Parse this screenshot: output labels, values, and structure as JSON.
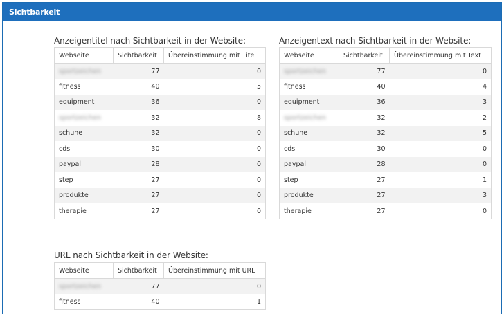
{
  "panel": {
    "title": "Sichtbarkeit"
  },
  "tables": {
    "title_table": {
      "heading": "Anzeigentitel nach Sichtbarkeit in der Website:",
      "columns": [
        "Webseite",
        "Sichtbarkeit",
        "Übereinstimmung mit Titel"
      ],
      "rows": [
        {
          "site": "sportzeichen",
          "blurred": true,
          "vis": "77",
          "match": "0"
        },
        {
          "site": "fitness",
          "blurred": false,
          "vis": "40",
          "match": "5"
        },
        {
          "site": "equipment",
          "blurred": false,
          "vis": "36",
          "match": "0"
        },
        {
          "site": "sportzeichen",
          "blurred": true,
          "vis": "32",
          "match": "8"
        },
        {
          "site": "schuhe",
          "blurred": false,
          "vis": "32",
          "match": "0"
        },
        {
          "site": "cds",
          "blurred": false,
          "vis": "30",
          "match": "0"
        },
        {
          "site": "paypal",
          "blurred": false,
          "vis": "28",
          "match": "0"
        },
        {
          "site": "step",
          "blurred": false,
          "vis": "27",
          "match": "0"
        },
        {
          "site": "produkte",
          "blurred": false,
          "vis": "27",
          "match": "0"
        },
        {
          "site": "therapie",
          "blurred": false,
          "vis": "27",
          "match": "0"
        }
      ]
    },
    "text_table": {
      "heading": "Anzeigentext nach Sichtbarkeit in der Website:",
      "columns": [
        "Webseite",
        "Sichtbarkeit",
        "Übereinstimmung mit Text"
      ],
      "rows": [
        {
          "site": "sportzeichen",
          "blurred": true,
          "vis": "77",
          "match": "0"
        },
        {
          "site": "fitness",
          "blurred": false,
          "vis": "40",
          "match": "4"
        },
        {
          "site": "equipment",
          "blurred": false,
          "vis": "36",
          "match": "3"
        },
        {
          "site": "sportzeichen",
          "blurred": true,
          "vis": "32",
          "match": "2"
        },
        {
          "site": "schuhe",
          "blurred": false,
          "vis": "32",
          "match": "5"
        },
        {
          "site": "cds",
          "blurred": false,
          "vis": "30",
          "match": "0"
        },
        {
          "site": "paypal",
          "blurred": false,
          "vis": "28",
          "match": "0"
        },
        {
          "site": "step",
          "blurred": false,
          "vis": "27",
          "match": "1"
        },
        {
          "site": "produkte",
          "blurred": false,
          "vis": "27",
          "match": "3"
        },
        {
          "site": "therapie",
          "blurred": false,
          "vis": "27",
          "match": "0"
        }
      ]
    },
    "url_table": {
      "heading": "URL nach Sichtbarkeit in der Website:",
      "columns": [
        "Webseite",
        "Sichtbarkeit",
        "Übereinstimmung mit URL"
      ],
      "rows": [
        {
          "site": "sportzeichen",
          "blurred": true,
          "vis": "77",
          "match": "0"
        },
        {
          "site": "fitness",
          "blurred": false,
          "vis": "40",
          "match": "1"
        }
      ]
    }
  },
  "colors": {
    "header_bg": "#1e6fbd",
    "row_alt": "#f2f2f2",
    "border": "#d9d9d9"
  }
}
